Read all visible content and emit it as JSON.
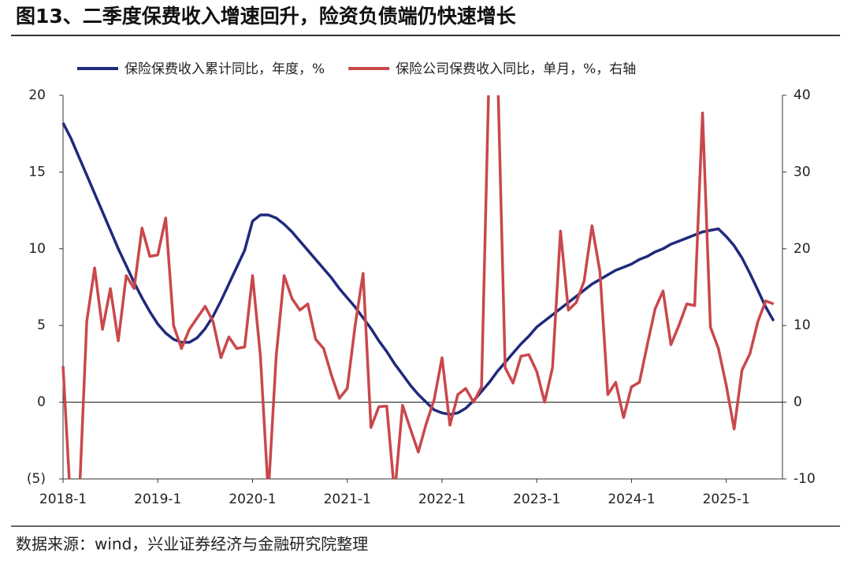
{
  "chart_data": {
    "type": "line",
    "title": "图13、二季度保费收入增速回升，险资负债端仍快速增长",
    "source": "数据来源：wind，兴业证券经济与金融研究院整理",
    "categories": [
      "2018-1",
      null,
      null,
      null,
      null,
      null,
      null,
      null,
      null,
      null,
      null,
      null,
      "2019-1",
      null,
      null,
      null,
      null,
      null,
      null,
      null,
      null,
      null,
      null,
      null,
      "2020-1",
      null,
      null,
      null,
      null,
      null,
      null,
      null,
      null,
      null,
      null,
      null,
      "2021-1",
      null,
      null,
      null,
      null,
      null,
      null,
      null,
      null,
      null,
      null,
      null,
      "2022-1",
      null,
      null,
      null,
      null,
      null,
      null,
      null,
      null,
      null,
      null,
      null,
      "2023-1",
      null,
      null,
      null,
      null,
      null,
      null,
      null,
      null,
      null,
      null,
      null,
      "2024-1",
      null,
      null,
      null,
      null,
      null,
      null,
      null,
      null,
      null,
      null,
      null,
      "2025-1",
      null,
      null,
      null,
      null,
      null,
      null
    ],
    "series": [
      {
        "name": "保险保费收入累计同比，年度，%",
        "color": "#1f2a7c",
        "axis": "y",
        "values": [
          18.2,
          17.2,
          16.0,
          14.8,
          13.6,
          12.4,
          11.2,
          10.0,
          8.9,
          7.8,
          6.8,
          5.9,
          5.1,
          4.5,
          4.1,
          3.9,
          3.9,
          4.2,
          4.8,
          5.6,
          6.6,
          7.7,
          8.8,
          9.9,
          11.8,
          12.2,
          12.2,
          12.0,
          11.6,
          11.1,
          10.5,
          9.9,
          9.3,
          8.7,
          8.1,
          7.4,
          6.8,
          6.2,
          5.5,
          4.8,
          4.0,
          3.3,
          2.5,
          1.8,
          1.1,
          0.5,
          0,
          -0.5,
          -0.7,
          -0.8,
          -0.7,
          -0.4,
          0.1,
          0.7,
          1.3,
          2.0,
          2.6,
          3.2,
          3.8,
          4.3,
          4.9,
          5.3,
          5.7,
          6.1,
          6.5,
          6.9,
          7.3,
          7.7,
          8.0,
          8.3,
          8.6,
          8.8,
          9.0,
          9.3,
          9.5,
          9.8,
          10.0,
          10.3,
          10.5,
          10.7,
          10.9,
          11.1,
          11.2,
          11.3,
          10.8,
          10.2,
          9.4,
          8.4,
          7.3,
          6.2,
          5.3
        ]
      },
      {
        "name": "保险公司保费收入同比，单月，%，右轴",
        "color": "#c9484b",
        "axis": "y2",
        "values": [
          4.7,
          -14,
          -14,
          10.5,
          17.5,
          9.5,
          14.8,
          8,
          16.5,
          14.8,
          22.7,
          19,
          19.2,
          24,
          10,
          7,
          9.5,
          11,
          12.5,
          10.5,
          5.8,
          8.5,
          7,
          7.2,
          16.5,
          6,
          -12,
          6,
          16.5,
          13.5,
          12,
          12.8,
          8.2,
          7,
          3.5,
          0.5,
          1.8,
          10,
          16.8,
          -3.3,
          -0.6,
          -0.5,
          -12,
          -0.4,
          -3.5,
          -6.5,
          -2.8,
          0.3,
          5.8,
          -3,
          1,
          1.8,
          0,
          2,
          45,
          45,
          4.5,
          2.5,
          6,
          6.2,
          4,
          0,
          4.5,
          22.3,
          12,
          13,
          15.8,
          23,
          17,
          1,
          2.6,
          -2,
          2,
          2.6,
          7.5,
          12.2,
          14.5,
          7.5,
          10,
          12.8,
          12.6,
          37.7,
          9.8,
          7,
          2.2,
          -3.5,
          4.2,
          6.3,
          10.5,
          13.2,
          12.8
        ]
      }
    ],
    "ylim": [
      -5,
      20
    ],
    "yticks": [
      {
        "value": -5,
        "label": "(5)"
      },
      0,
      5,
      10,
      15,
      20
    ],
    "y2lim": [
      -10,
      40
    ],
    "y2ticks": [
      -10,
      0,
      10,
      20,
      30,
      40
    ]
  }
}
